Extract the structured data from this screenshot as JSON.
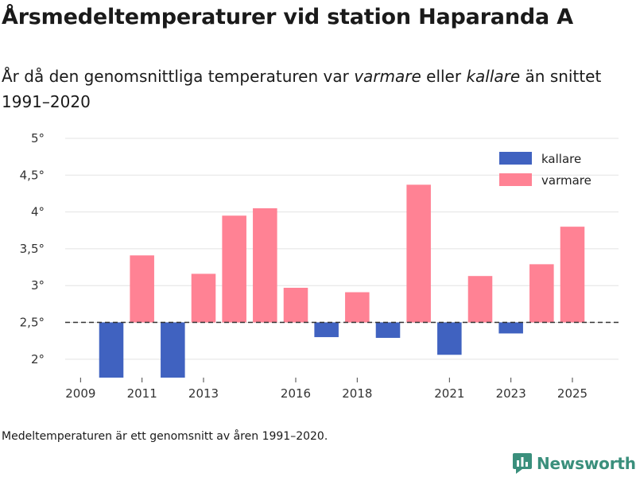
{
  "header": {
    "title": "Årsmedeltemperaturer vid station Haparanda A",
    "subtitle_part1": "År då den genomsnittliga temperaturen var ",
    "subtitle_em1": "varmare",
    "subtitle_part2": " eller ",
    "subtitle_em2": "kallare",
    "subtitle_part3": " än snittet 1991–2020"
  },
  "chart_data": {
    "type": "bar",
    "baseline": 2.5,
    "ylim": [
      1.75,
      5
    ],
    "yticks": [
      2,
      2.5,
      3,
      3.5,
      4,
      4.5,
      5
    ],
    "ytick_labels": [
      "2°",
      "2,5°",
      "3°",
      "3,5°",
      "4°",
      "4,5°",
      "5°"
    ],
    "xtick_years": [
      2009,
      2011,
      2013,
      2016,
      2018,
      2021,
      2023,
      2025
    ],
    "xlim": [
      2008.5,
      2026.5
    ],
    "data": [
      {
        "year": 2009,
        "value": 2.5
      },
      {
        "year": 2010,
        "value": 1.75
      },
      {
        "year": 2011,
        "value": 3.41
      },
      {
        "year": 2012,
        "value": 1.75
      },
      {
        "year": 2013,
        "value": 3.16
      },
      {
        "year": 2014,
        "value": 3.95
      },
      {
        "year": 2015,
        "value": 4.05
      },
      {
        "year": 2016,
        "value": 2.97
      },
      {
        "year": 2017,
        "value": 2.3
      },
      {
        "year": 2018,
        "value": 2.91
      },
      {
        "year": 2019,
        "value": 2.29
      },
      {
        "year": 2020,
        "value": 4.37
      },
      {
        "year": 2021,
        "value": 2.06
      },
      {
        "year": 2022,
        "value": 3.13
      },
      {
        "year": 2023,
        "value": 2.35
      },
      {
        "year": 2024,
        "value": 3.29
      },
      {
        "year": 2025,
        "value": 3.8
      }
    ],
    "legend": [
      {
        "label": "kallare",
        "color": "#4062c0"
      },
      {
        "label": "varmare",
        "color": "#ff8294"
      }
    ],
    "colors": {
      "colder": "#4062c0",
      "warmer": "#ff8294",
      "grid": "#e3e3e3",
      "baseline": "#333333"
    }
  },
  "footer": {
    "note": "Medeltemperaturen är ett genomsnitt av åren 1991–2020.",
    "brand": "Newsworthy"
  }
}
